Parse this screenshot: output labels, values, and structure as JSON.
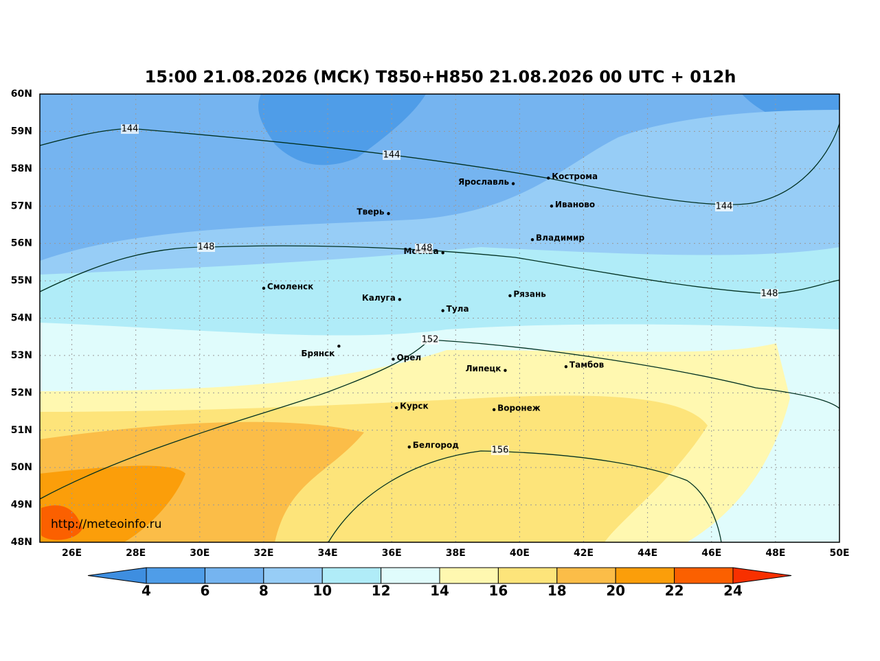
{
  "title": "15:00 21.08.2026 (МСК) T850+H850 21.08.2026 00 UTC + 012h",
  "map": {
    "xlim": [
      25,
      50
    ],
    "ylim": [
      48,
      60
    ],
    "xticks": [
      {
        "value": 26,
        "label": "26E"
      },
      {
        "value": 28,
        "label": "28E"
      },
      {
        "value": 30,
        "label": "30E"
      },
      {
        "value": 32,
        "label": "32E"
      },
      {
        "value": 34,
        "label": "34E"
      },
      {
        "value": 36,
        "label": "36E"
      },
      {
        "value": 38,
        "label": "38E"
      },
      {
        "value": 40,
        "label": "40E"
      },
      {
        "value": 42,
        "label": "42E"
      },
      {
        "value": 44,
        "label": "44E"
      },
      {
        "value": 46,
        "label": "46E"
      },
      {
        "value": 48,
        "label": "48E"
      },
      {
        "value": 50,
        "label": "50E"
      }
    ],
    "yticks": [
      {
        "value": 48,
        "label": "48N"
      },
      {
        "value": 49,
        "label": "49N"
      },
      {
        "value": 50,
        "label": "50N"
      },
      {
        "value": 51,
        "label": "51N"
      },
      {
        "value": 52,
        "label": "52N"
      },
      {
        "value": 53,
        "label": "53N"
      },
      {
        "value": 54,
        "label": "54N"
      },
      {
        "value": 55,
        "label": "55N"
      },
      {
        "value": 56,
        "label": "56N"
      },
      {
        "value": 57,
        "label": "57N"
      },
      {
        "value": 58,
        "label": "58N"
      },
      {
        "value": 59,
        "label": "59N"
      },
      {
        "value": 60,
        "label": "60N"
      }
    ],
    "grid": true
  },
  "cities": [
    {
      "name": "Тверь",
      "lon": 35.9,
      "lat": 56.8
    },
    {
      "name": "Ярославль",
      "lon": 39.8,
      "lat": 57.6
    },
    {
      "name": "Кострома",
      "lon": 40.9,
      "lat": 57.75
    },
    {
      "name": "Иваново",
      "lon": 41.0,
      "lat": 57.0
    },
    {
      "name": "Владимир",
      "lon": 40.4,
      "lat": 56.1
    },
    {
      "name": "Москва",
      "lon": 37.6,
      "lat": 55.75
    },
    {
      "name": "Смоленск",
      "lon": 32.0,
      "lat": 54.8
    },
    {
      "name": "Калуга",
      "lon": 36.25,
      "lat": 54.5
    },
    {
      "name": "Тула",
      "lon": 37.6,
      "lat": 54.2
    },
    {
      "name": "Рязань",
      "lon": 39.7,
      "lat": 54.6
    },
    {
      "name": "Брянск",
      "lon": 34.35,
      "lat": 53.25
    },
    {
      "name": "Орел",
      "lon": 36.05,
      "lat": 52.9
    },
    {
      "name": "Липецк",
      "lon": 39.55,
      "lat": 52.6
    },
    {
      "name": "Тамбов",
      "lon": 41.45,
      "lat": 52.7
    },
    {
      "name": "Курск",
      "lon": 36.15,
      "lat": 51.6
    },
    {
      "name": "Воронеж",
      "lon": 39.2,
      "lat": 51.55
    },
    {
      "name": "Белгород",
      "lon": 36.55,
      "lat": 50.55
    }
  ],
  "contours": [
    {
      "level": 144
    },
    {
      "level": 148
    },
    {
      "level": 152
    },
    {
      "level": 156
    }
  ],
  "colorbar": {
    "ticks": [
      4,
      6,
      8,
      10,
      12,
      14,
      16,
      18,
      20,
      22,
      24
    ],
    "colors": [
      "#4f9de8",
      "#75b4f0",
      "#97cdf6",
      "#b0ecf8",
      "#e0fcfc",
      "#fff8b0",
      "#fde47a",
      "#fbbd48",
      "#fb9e0a",
      "#fb6000"
    ],
    "extend_colors": [
      "#3e8ee0",
      "#f83000"
    ]
  },
  "watermark": "http://meteoinfo.ru"
}
